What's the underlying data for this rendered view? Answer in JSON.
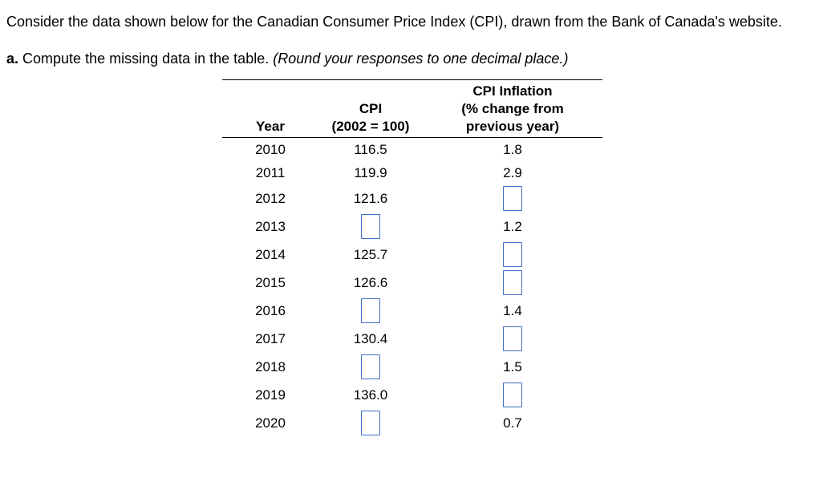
{
  "problem": {
    "intro": "Consider the data shown below for the Canadian Consumer Price Index (CPI), drawn from the Bank of Canada's website.",
    "part_label": "a.",
    "part_text": "Compute the missing data in the table.",
    "part_note": "(Round your responses to one decimal place.)"
  },
  "table": {
    "headers": {
      "year": "Year",
      "cpi_line1": "CPI",
      "cpi_line2": "(2002 = 100)",
      "inflation_line1": "CPI Inflation",
      "inflation_line2": "(% change from",
      "inflation_line3": "previous year)"
    },
    "rows": [
      {
        "year": "2010",
        "cpi": {
          "text": "116.5"
        },
        "inflation": {
          "text": "1.8"
        }
      },
      {
        "year": "2011",
        "cpi": {
          "text": "119.9"
        },
        "inflation": {
          "text": "2.9"
        }
      },
      {
        "year": "2012",
        "cpi": {
          "text": "121.6"
        },
        "inflation": {
          "input": true,
          "value": ""
        }
      },
      {
        "year": "2013",
        "cpi": {
          "input": true,
          "value": ""
        },
        "inflation": {
          "text": "1.2"
        }
      },
      {
        "year": "2014",
        "cpi": {
          "text": "125.7"
        },
        "inflation": {
          "input": true,
          "value": ""
        }
      },
      {
        "year": "2015",
        "cpi": {
          "text": "126.6"
        },
        "inflation": {
          "input": true,
          "value": ""
        }
      },
      {
        "year": "2016",
        "cpi": {
          "input": true,
          "value": ""
        },
        "inflation": {
          "text": "1.4"
        }
      },
      {
        "year": "2017",
        "cpi": {
          "text": "130.4"
        },
        "inflation": {
          "input": true,
          "value": ""
        }
      },
      {
        "year": "2018",
        "cpi": {
          "input": true,
          "value": ""
        },
        "inflation": {
          "text": "1.5"
        }
      },
      {
        "year": "2019",
        "cpi": {
          "text": "136.0"
        },
        "inflation": {
          "input": true,
          "value": ""
        }
      },
      {
        "year": "2020",
        "cpi": {
          "input": true,
          "value": ""
        },
        "inflation": {
          "text": "0.7"
        }
      }
    ]
  },
  "colors": {
    "input_border": "#3e6dc4",
    "table_rule": "#000000",
    "text": "#000000",
    "background": "#ffffff"
  }
}
